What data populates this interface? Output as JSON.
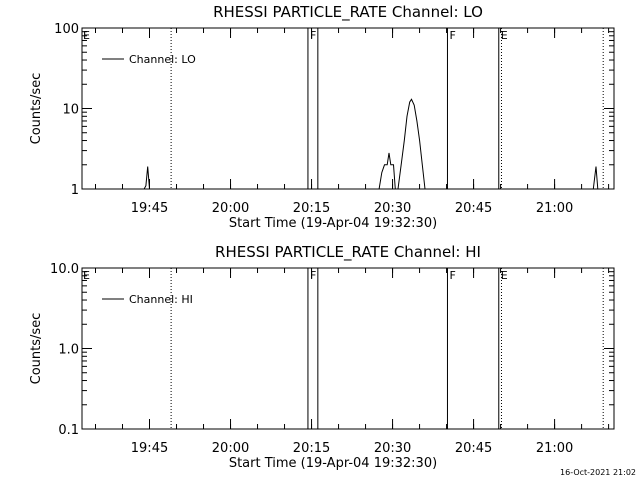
{
  "chart_data": [
    {
      "type": "line",
      "title": "RHESSI PARTICLE_RATE Channel: LO",
      "xlabel": "Start Time (19-Apr-04 19:32:30)",
      "ylabel": "Counts/sec",
      "y_scale": "log",
      "ylim": [
        1,
        100
      ],
      "y_ticks": [
        1,
        10,
        100
      ],
      "y_tick_labels": [
        "1",
        "10",
        "100"
      ],
      "xlim": [
        "19:32:30",
        "21:11:00"
      ],
      "x_ticks": [
        "19:45",
        "20:00",
        "20:15",
        "20:30",
        "20:45",
        "21:00"
      ],
      "legend": {
        "label": "Channel: LO",
        "placement": "top-left"
      },
      "grid": false,
      "markers": [
        {
          "time": "19:49:00",
          "style": "dotted",
          "flag": ""
        },
        {
          "time": "20:14:20",
          "style": "solid",
          "flag": "F"
        },
        {
          "time": "20:16:10",
          "style": "solid",
          "flag": ""
        },
        {
          "time": "20:40:10",
          "style": "solid",
          "flag": "F"
        },
        {
          "time": "20:49:40",
          "style": "solid",
          "flag": "E"
        },
        {
          "time": "20:50:10",
          "style": "dotted",
          "flag": ""
        },
        {
          "time": "21:09:00",
          "style": "dotted",
          "flag": ""
        }
      ],
      "edge_flag": "E",
      "series": [
        {
          "name": "Channel: LO",
          "points": [
            [
              "19:44:00",
              1
            ],
            [
              "19:44:20",
              1.1
            ],
            [
              "19:44:40",
              1.9
            ],
            [
              "19:45:00",
              1
            ],
            [
              "20:27:30",
              1
            ],
            [
              "20:28:00",
              1.6
            ],
            [
              "20:28:30",
              2.0
            ],
            [
              "20:29:00",
              2.0
            ],
            [
              "20:29:20",
              2.8
            ],
            [
              "20:29:40",
              2.0
            ],
            [
              "20:30:10",
              2.0
            ],
            [
              "20:30:30",
              1
            ],
            [
              "20:31:00",
              1
            ],
            [
              "20:31:40",
              2.2
            ],
            [
              "20:32:10",
              4.0
            ],
            [
              "20:32:40",
              8.0
            ],
            [
              "20:33:10",
              12.0
            ],
            [
              "20:33:30",
              13.0
            ],
            [
              "20:34:00",
              11.0
            ],
            [
              "20:34:30",
              7.0
            ],
            [
              "20:35:00",
              4.0
            ],
            [
              "20:35:30",
              2.0
            ],
            [
              "20:36:00",
              1
            ],
            [
              "21:07:10",
              1
            ],
            [
              "21:07:40",
              1.9
            ],
            [
              "21:08:00",
              1
            ]
          ]
        }
      ]
    },
    {
      "type": "line",
      "title": "RHESSI PARTICLE_RATE Channel: HI",
      "xlabel": "Start Time (19-Apr-04 19:32:30)",
      "ylabel": "Counts/sec",
      "y_scale": "log",
      "ylim": [
        0.1,
        10
      ],
      "y_ticks": [
        0.1,
        1,
        10
      ],
      "y_tick_labels": [
        "0.1",
        "1.0",
        "10.0"
      ],
      "xlim": [
        "19:32:30",
        "21:11:00"
      ],
      "x_ticks": [
        "19:45",
        "20:00",
        "20:15",
        "20:30",
        "20:45",
        "21:00"
      ],
      "legend": {
        "label": "Channel: HI",
        "placement": "top-left"
      },
      "grid": false,
      "markers": [
        {
          "time": "19:49:00",
          "style": "dotted",
          "flag": ""
        },
        {
          "time": "20:14:20",
          "style": "solid",
          "flag": "F"
        },
        {
          "time": "20:16:10",
          "style": "solid",
          "flag": ""
        },
        {
          "time": "20:40:10",
          "style": "solid",
          "flag": "F"
        },
        {
          "time": "20:49:40",
          "style": "solid",
          "flag": "E"
        },
        {
          "time": "20:50:10",
          "style": "dotted",
          "flag": ""
        },
        {
          "time": "21:09:00",
          "style": "dotted",
          "flag": ""
        }
      ],
      "edge_flag": "E",
      "series": [
        {
          "name": "Channel: HI",
          "points": []
        }
      ]
    }
  ],
  "footer": {
    "timestamp": "16-Oct-2021 21:02"
  }
}
